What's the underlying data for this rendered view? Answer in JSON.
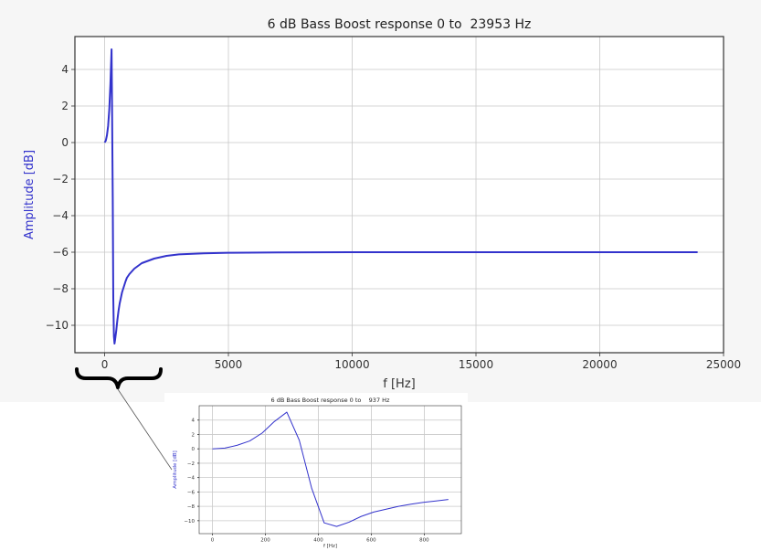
{
  "chart_data": [
    {
      "type": "line",
      "title": "6 dB Bass Boost response 0 to  23953 Hz",
      "xlabel": "f [Hz]",
      "ylabel": "Amplitude [dB]",
      "xlim": [
        -1200,
        25000
      ],
      "ylim": [
        -11.5,
        5.8
      ],
      "xticks": [
        0,
        5000,
        10000,
        15000,
        20000,
        25000
      ],
      "xtick_labels": [
        "0",
        "5000",
        "10000",
        "15000",
        "20000",
        "25000"
      ],
      "yticks": [
        4,
        2,
        0,
        -2,
        -4,
        -6,
        -8,
        -10
      ],
      "ytick_labels": [
        "4",
        "2",
        "0",
        "−2",
        "−4",
        "−6",
        "−8",
        "−10"
      ],
      "grid": true,
      "line_color": "#3333cc",
      "x": [
        0,
        47,
        94,
        141,
        188,
        234,
        281,
        300,
        328,
        350,
        375,
        400,
        422,
        469,
        516,
        562,
        609,
        656,
        703,
        750,
        797,
        844,
        900,
        1000,
        1200,
        1500,
        2000,
        2500,
        3000,
        4000,
        5000,
        7000,
        10000,
        15000,
        20000,
        23953
      ],
      "y": [
        0.0,
        0.1,
        0.4,
        0.9,
        1.8,
        3.2,
        5.1,
        2.0,
        -3.0,
        -8.5,
        -10.6,
        -11.0,
        -10.8,
        -10.3,
        -9.7,
        -9.2,
        -8.8,
        -8.5,
        -8.2,
        -8.0,
        -7.8,
        -7.6,
        -7.4,
        -7.2,
        -6.9,
        -6.6,
        -6.35,
        -6.2,
        -6.12,
        -6.06,
        -6.03,
        -6.01,
        -6.0,
        -6.0,
        -6.0,
        -6.0
      ]
    },
    {
      "type": "line",
      "title": "6 dB Bass Boost response 0 to    937 Hz",
      "xlabel": "f [Hz]",
      "ylabel": "Amplitude [dB]",
      "xlim": [
        -50,
        940
      ],
      "ylim": [
        -11.8,
        6.0
      ],
      "xticks": [
        0,
        200,
        400,
        600,
        800
      ],
      "xtick_labels": [
        "0",
        "200",
        "400",
        "600",
        "800"
      ],
      "yticks": [
        4,
        2,
        0,
        -2,
        -4,
        -6,
        -8,
        -10
      ],
      "ytick_labels": [
        "4",
        "2",
        "0",
        "−2",
        "−4",
        "−6",
        "−8",
        "−10"
      ],
      "grid": true,
      "line_color": "#3333cc",
      "x": [
        0,
        47,
        94,
        141,
        188,
        234,
        281,
        328,
        375,
        422,
        469,
        516,
        562,
        609,
        656,
        703,
        750,
        797,
        844,
        891
      ],
      "y": [
        0.0,
        0.1,
        0.5,
        1.1,
        2.2,
        3.8,
        5.1,
        1.2,
        -5.5,
        -10.3,
        -10.8,
        -10.2,
        -9.4,
        -8.8,
        -8.4,
        -8.0,
        -7.7,
        -7.45,
        -7.25,
        -7.05
      ]
    }
  ]
}
